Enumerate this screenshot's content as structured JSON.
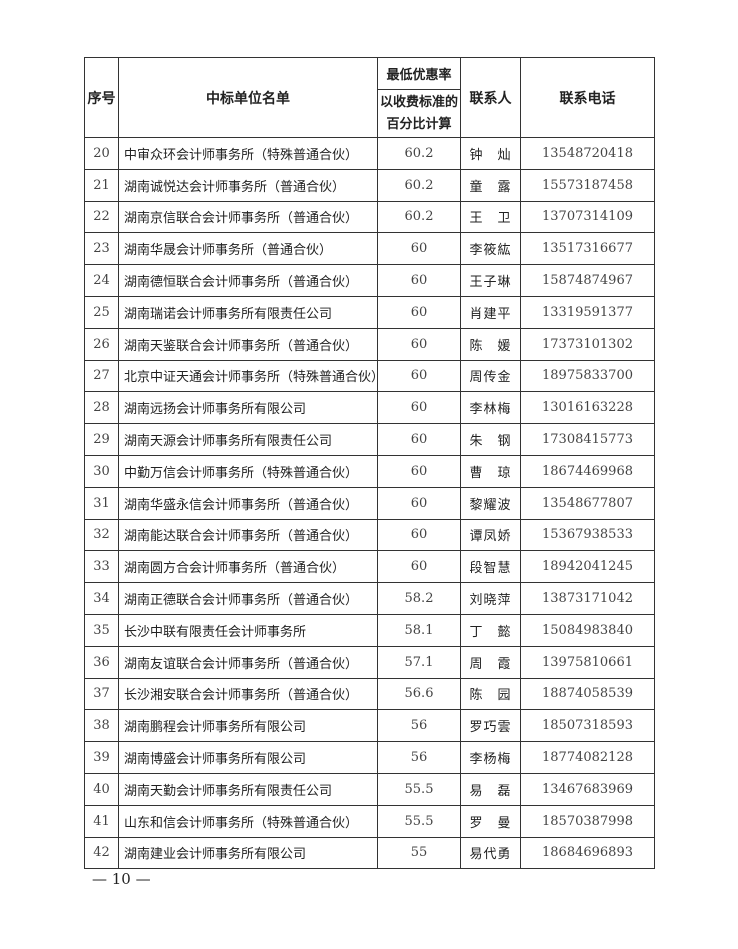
{
  "header": {
    "seq": "序号",
    "name": "中标单位名单",
    "rate_top": "最低优惠率",
    "rate_sub_1": "以收费标准的",
    "rate_sub_2": "百分比计算",
    "contact": "联系人",
    "phone": "联系电话"
  },
  "rows": [
    {
      "no": "20",
      "name": "中审众环会计师事务所（特殊普通合伙）",
      "rate": "60.2",
      "contact": "钟　灿",
      "phone": "13548720418"
    },
    {
      "no": "21",
      "name": "湖南诚悦达会计师事务所（普通合伙）",
      "rate": "60.2",
      "contact": "童　露",
      "phone": "15573187458"
    },
    {
      "no": "22",
      "name": "湖南京信联合会计师事务所（普通合伙）",
      "rate": "60.2",
      "contact": "王　卫",
      "phone": "13707314109"
    },
    {
      "no": "23",
      "name": "湖南华晟会计师事务所（普通合伙）",
      "rate": "60",
      "contact": "李筱紘",
      "phone": "13517316677"
    },
    {
      "no": "24",
      "name": "湖南德恒联合会计师事务所（普通合伙）",
      "rate": "60",
      "contact": "王子琳",
      "phone": "15874874967"
    },
    {
      "no": "25",
      "name": "湖南瑞诺会计师事务所有限责任公司",
      "rate": "60",
      "contact": "肖建平",
      "phone": "13319591377"
    },
    {
      "no": "26",
      "name": "湖南天鉴联合会计师事务所（普通合伙）",
      "rate": "60",
      "contact": "陈　媛",
      "phone": "17373101302"
    },
    {
      "no": "27",
      "name": "北京中证天通会计师事务所（特殊普通合伙）",
      "rate": "60",
      "contact": "周传金",
      "phone": "18975833700"
    },
    {
      "no": "28",
      "name": "湖南远扬会计师事务所有限公司",
      "rate": "60",
      "contact": "李林梅",
      "phone": "13016163228"
    },
    {
      "no": "29",
      "name": "湖南天源会计师事务所有限责任公司",
      "rate": "60",
      "contact": "朱　钢",
      "phone": "17308415773"
    },
    {
      "no": "30",
      "name": "中勤万信会计师事务所（特殊普通合伙）",
      "rate": "60",
      "contact": "曹　琼",
      "phone": "18674469968"
    },
    {
      "no": "31",
      "name": "湖南华盛永信会计师事务所（普通合伙）",
      "rate": "60",
      "contact": "黎耀波",
      "phone": "13548677807"
    },
    {
      "no": "32",
      "name": "湖南能达联合会计师事务所（普通合伙）",
      "rate": "60",
      "contact": "谭凤娇",
      "phone": "15367938533"
    },
    {
      "no": "33",
      "name": "湖南圆方合会计师事务所（普通合伙）",
      "rate": "60",
      "contact": "段智慧",
      "phone": "18942041245"
    },
    {
      "no": "34",
      "name": "湖南正德联合会计师事务所（普通合伙）",
      "rate": "58.2",
      "contact": "刘晓萍",
      "phone": "13873171042"
    },
    {
      "no": "35",
      "name": "长沙中联有限责任会计师事务所",
      "rate": "58.1",
      "contact": "丁　懿",
      "phone": "15084983840"
    },
    {
      "no": "36",
      "name": "湖南友谊联合会计师事务所（普通合伙）",
      "rate": "57.1",
      "contact": "周　霞",
      "phone": "13975810661"
    },
    {
      "no": "37",
      "name": "长沙湘安联合会计师事务所（普通合伙）",
      "rate": "56.6",
      "contact": "陈　园",
      "phone": "18874058539"
    },
    {
      "no": "38",
      "name": "湖南鹏程会计师事务所有限公司",
      "rate": "56",
      "contact": "罗巧雲",
      "phone": "18507318593"
    },
    {
      "no": "39",
      "name": "湖南博盛会计师事务所有限公司",
      "rate": "56",
      "contact": "李杨梅",
      "phone": "18774082128"
    },
    {
      "no": "40",
      "name": "湖南天勤会计师事务所有限责任公司",
      "rate": "55.5",
      "contact": "易　磊",
      "phone": "13467683969"
    },
    {
      "no": "41",
      "name": "山东和信会计师事务所（特殊普通合伙）",
      "rate": "55.5",
      "contact": "罗　曼",
      "phone": "18570387998"
    },
    {
      "no": "42",
      "name": "湖南建业会计师事务所有限公司",
      "rate": "55",
      "contact": "易代勇",
      "phone": "18684696893"
    }
  ],
  "footer": {
    "page_number": "— 10 —"
  }
}
